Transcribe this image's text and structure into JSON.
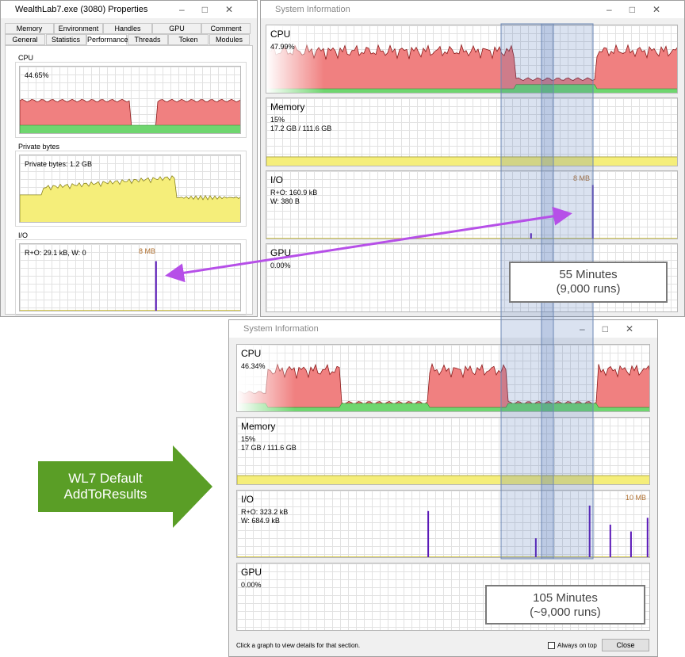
{
  "properties_window": {
    "title": "WealthLab7.exe (3080) Properties",
    "tabs_row1": [
      "Memory",
      "Environment",
      "Handles",
      "GPU",
      "Comment"
    ],
    "tabs_row2": [
      "General",
      "Statistics",
      "Performance",
      "Threads",
      "Token",
      "Modules"
    ],
    "sections": [
      {
        "label": "CPU",
        "readout": "44.65%"
      },
      {
        "label": "Private bytes",
        "readout": "Private bytes: 1.2 GB"
      },
      {
        "label": "I/O",
        "readout": "R+O: 29.1 kB, W: 0",
        "peak": "8 MB"
      }
    ]
  },
  "sysinfo_top": {
    "title": "System Information",
    "panels": [
      {
        "name": "CPU",
        "lines": [
          "47.99%"
        ]
      },
      {
        "name": "Memory",
        "lines": [
          "15%",
          "17.2 GB / 111.6 GB"
        ]
      },
      {
        "name": "I/O",
        "lines": [
          "R+O: 160.9 kB",
          "W: 380 B"
        ],
        "peak": "8 MB"
      },
      {
        "name": "GPU",
        "lines": [
          "0.00%"
        ]
      }
    ],
    "callout": [
      "55 Minutes",
      "(9,000 runs)"
    ]
  },
  "sysinfo_bottom": {
    "title": "System Information",
    "panels": [
      {
        "name": "CPU",
        "lines": [
          "46.34%"
        ]
      },
      {
        "name": "Memory",
        "lines": [
          "15%",
          "17 GB / 111.6 GB"
        ]
      },
      {
        "name": "I/O",
        "lines": [
          "R+O: 323.2 kB",
          "W: 684.9 kB"
        ],
        "peak": "10 MB"
      },
      {
        "name": "GPU",
        "lines": [
          "0.00%"
        ]
      }
    ],
    "footer": "Click a graph to view details for that section.",
    "checkbox": "Always on top",
    "button": "Close",
    "callout": [
      "105 Minutes",
      "(~9,000 runs)"
    ]
  },
  "arrow_label": [
    "WL7 Default",
    "AddToResults"
  ]
}
